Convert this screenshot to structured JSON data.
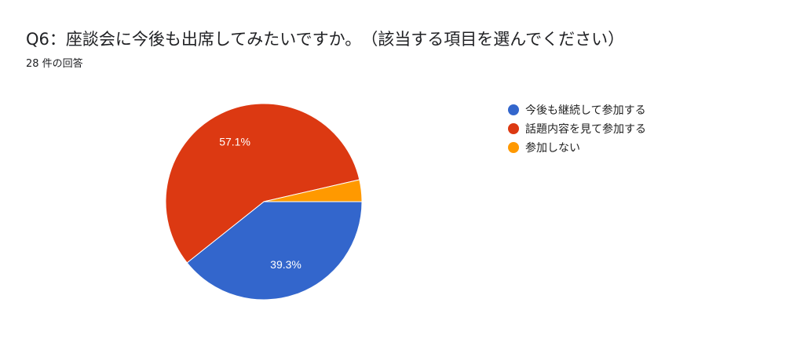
{
  "title": "Q6：座談会に今後も出席してみたいですか。　（該当する項目を選んでください）",
  "subtitle": "28 件の回答",
  "chart_data": {
    "type": "pie",
    "categories": [
      "今後も継続して参加する",
      "話題内容を見て参加する",
      "参加しない"
    ],
    "values": [
      39.3,
      57.1,
      3.6
    ],
    "data_labels": [
      "39.3%",
      "57.1%",
      ""
    ],
    "colors": [
      "#3366cc",
      "#dc3912",
      "#ff9900"
    ],
    "legend_position": "right"
  }
}
